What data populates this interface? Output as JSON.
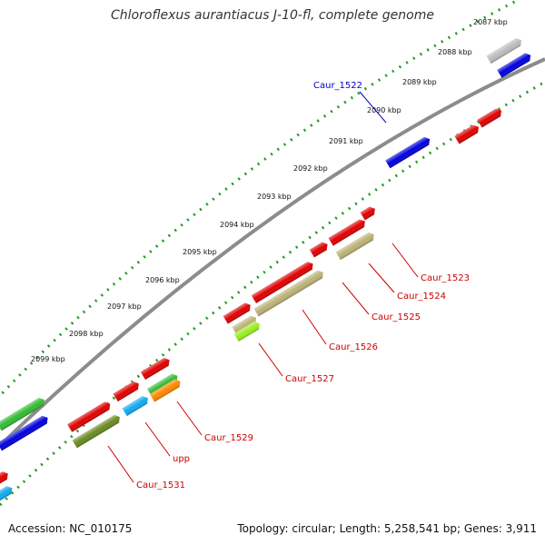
{
  "title": "Chloroflexus aurantiacus J-10-fl, complete genome",
  "footer": {
    "accession": "Accession: NC_010175",
    "summary": "Topology: circular; Length: 5,258,541 bp; Genes: 3,911"
  },
  "ticks": [
    "2087 kbp",
    "2088 kbp",
    "2089 kbp",
    "2090 kbp",
    "2091 kbp",
    "2092 kbp",
    "2093 kbp",
    "2094 kbp",
    "2095 kbp",
    "2096 kbp",
    "2097 kbp",
    "2098 kbp",
    "2099 kbp"
  ],
  "labels": [
    {
      "text": "Caur_1522",
      "color": "#0000cc"
    },
    {
      "text": "Caur_1523",
      "color": "#cc0000"
    },
    {
      "text": "Caur_1524",
      "color": "#cc0000"
    },
    {
      "text": "Caur_1525",
      "color": "#cc0000"
    },
    {
      "text": "Caur_1526",
      "color": "#cc0000"
    },
    {
      "text": "Caur_1527",
      "color": "#cc0000"
    },
    {
      "text": "Caur_1529",
      "color": "#cc0000"
    },
    {
      "text": "upp",
      "color": "#cc0000"
    },
    {
      "text": "Caur_1531",
      "color": "#cc0000"
    }
  ],
  "colors": {
    "backbone": "#8c8c8c",
    "tick_dots": "#229922",
    "red": "#e00000",
    "blue": "#0000dd",
    "green": "#33bb33",
    "olive": "#bbb377",
    "darkolive": "#6a8a22",
    "lime": "#99ee22",
    "cyan": "#11aaee",
    "orange": "#ff8800",
    "gray": "#bdbdbd"
  }
}
